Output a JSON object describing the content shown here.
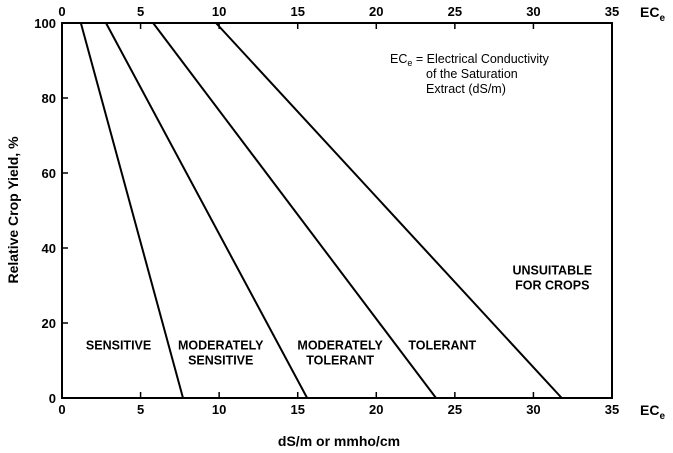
{
  "chart_data": {
    "type": "line",
    "xlabel": "dS/m or mmho/cm",
    "ylabel": "Relative Crop Yield, %",
    "x_axis_title_main": "EC",
    "x_axis_title_sub": "e",
    "xlim": [
      0,
      35
    ],
    "ylim": [
      0,
      100
    ],
    "x_ticks": [
      0,
      5,
      10,
      15,
      20,
      25,
      30,
      35
    ],
    "y_ticks": [
      0,
      20,
      40,
      60,
      80,
      100
    ],
    "grid": false,
    "series": [
      {
        "x": [
          1.2,
          7.7
        ],
        "y": [
          100,
          0
        ]
      },
      {
        "x": [
          2.8,
          15.6
        ],
        "y": [
          100,
          0
        ]
      },
      {
        "x": [
          5.8,
          23.8
        ],
        "y": [
          100,
          0
        ]
      },
      {
        "x": [
          9.8,
          31.8
        ],
        "y": [
          100,
          0
        ]
      }
    ],
    "zone_labels": [
      {
        "lines": [
          "SENSITIVE"
        ],
        "x": 3.6,
        "y": 13
      },
      {
        "lines": [
          "MODERATELY",
          "SENSITIVE"
        ],
        "x": 10.1,
        "y": 13
      },
      {
        "lines": [
          "MODERATELY",
          "TOLERANT"
        ],
        "x": 17.7,
        "y": 13
      },
      {
        "lines": [
          "TOLERANT"
        ],
        "x": 24.2,
        "y": 13
      },
      {
        "lines": [
          "UNSUITABLE",
          "FOR CROPS"
        ],
        "x": 31.2,
        "y": 33
      }
    ],
    "annotation": {
      "lead_main": "EC",
      "lead_sub": "e",
      "line1_rest": " = Electrical Conductivity",
      "line2": "of the Saturation",
      "line3": "Extract (dS/m)"
    }
  }
}
